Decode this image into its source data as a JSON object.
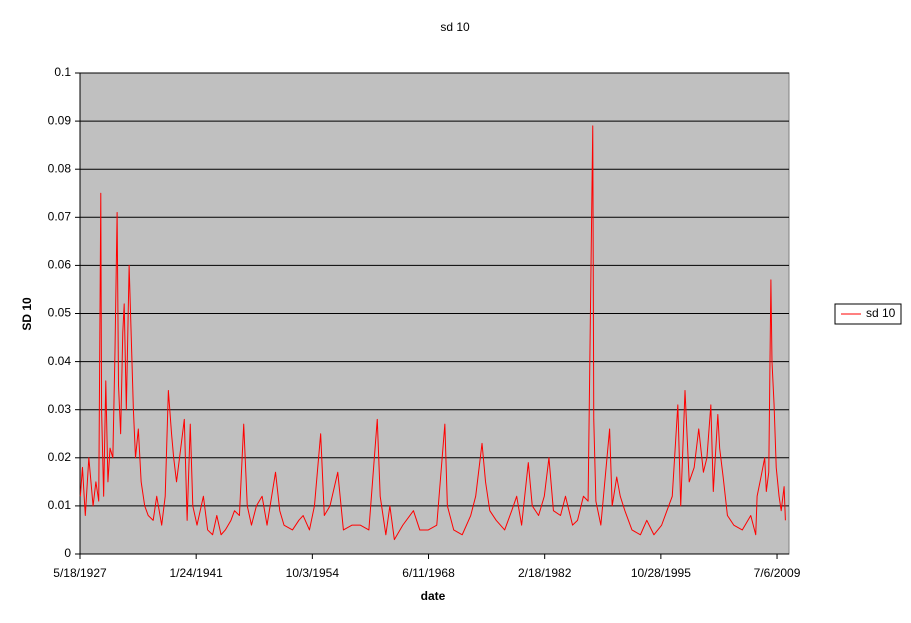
{
  "chart_data": {
    "type": "line",
    "title": "sd 10",
    "x_label": "date",
    "y_label": "SD 10",
    "x": [
      "1927-06-01",
      "1927-09-01",
      "1928-01-01",
      "1928-06-01",
      "1928-12-01",
      "1929-04-01",
      "1929-08-01",
      "1929-10-29",
      "1929-12-01",
      "1930-03-01",
      "1930-06-01",
      "1930-09-01",
      "1930-12-01",
      "1931-04-01",
      "1931-07-01",
      "1931-10-01",
      "1931-12-01",
      "1932-03-01",
      "1932-06-01",
      "1932-08-01",
      "1932-11-01",
      "1933-03-01",
      "1933-06-01",
      "1933-09-01",
      "1933-12-01",
      "1934-04-01",
      "1934-08-01",
      "1935-01-01",
      "1935-06-01",
      "1936-01-01",
      "1936-06-01",
      "1937-01-01",
      "1937-06-01",
      "1937-10-15",
      "1938-03-01",
      "1938-06-01",
      "1938-10-01",
      "1939-04-01",
      "1939-09-01",
      "1940-01-01",
      "1940-05-15",
      "1940-09-01",
      "1941-03-01",
      "1941-12-01",
      "1942-06-01",
      "1943-01-01",
      "1943-07-01",
      "1944-01-01",
      "1944-07-01",
      "1945-03-01",
      "1945-08-01",
      "1946-03-01",
      "1946-09-01",
      "1947-02-01",
      "1947-08-01",
      "1948-03-01",
      "1948-11-01",
      "1949-06-01",
      "1950-06-01",
      "1950-12-01",
      "1951-06-01",
      "1952-06-01",
      "1953-03-01",
      "1953-09-01",
      "1954-06-01",
      "1955-01-01",
      "1955-09-26",
      "1956-03-01",
      "1956-11-01",
      "1957-10-01",
      "1958-06-01",
      "1959-06-01",
      "1960-06-01",
      "1961-06-01",
      "1962-05-28",
      "1962-10-01",
      "1963-06-01",
      "1963-11-22",
      "1964-06-01",
      "1965-06-01",
      "1966-09-01",
      "1967-06-01",
      "1968-06-01",
      "1969-06-01",
      "1970-05-15",
      "1970-09-01",
      "1971-06-01",
      "1972-06-01",
      "1973-06-01",
      "1974-01-01",
      "1974-10-01",
      "1975-03-01",
      "1975-09-01",
      "1976-06-01",
      "1977-06-01",
      "1978-04-01",
      "1978-11-01",
      "1979-06-01",
      "1980-03-15",
      "1980-09-01",
      "1981-06-01",
      "1982-02-01",
      "1982-08-20",
      "1983-03-01",
      "1984-01-01",
      "1984-08-01",
      "1985-06-01",
      "1986-01-01",
      "1986-09-12",
      "1987-04-01",
      "1987-10-19",
      "1987-12-01",
      "1988-03-01",
      "1988-10-01",
      "1989-10-13",
      "1990-02-01",
      "1990-08-15",
      "1991-01-15",
      "1991-08-01",
      "1992-06-01",
      "1993-06-01",
      "1994-03-01",
      "1995-01-01",
      "1995-12-01",
      "1996-07-15",
      "1997-03-01",
      "1997-10-27",
      "1998-03-01",
      "1998-09-01",
      "1999-03-01",
      "1999-10-01",
      "2000-04-14",
      "2000-11-01",
      "2001-04-01",
      "2001-09-17",
      "2002-01-01",
      "2002-07-15",
      "2002-10-01",
      "2003-03-01",
      "2003-09-01",
      "2004-06-01",
      "2005-06-01",
      "2006-06-01",
      "2007-01-01",
      "2007-03-01",
      "2007-08-15",
      "2008-01-22",
      "2008-04-01",
      "2008-07-15",
      "2008-10-15",
      "2008-12-01",
      "2009-03-01",
      "2009-06-01",
      "2009-10-01",
      "2010-01-01",
      "2010-05-06",
      "2010-07-01"
    ],
    "series": [
      {
        "name": "sd 10",
        "color": "#ff0000",
        "values": [
          0.012,
          0.018,
          0.008,
          0.02,
          0.01,
          0.015,
          0.011,
          0.075,
          0.03,
          0.012,
          0.036,
          0.015,
          0.022,
          0.02,
          0.042,
          0.071,
          0.035,
          0.025,
          0.046,
          0.052,
          0.03,
          0.06,
          0.045,
          0.03,
          0.02,
          0.026,
          0.015,
          0.01,
          0.008,
          0.007,
          0.012,
          0.006,
          0.012,
          0.034,
          0.025,
          0.02,
          0.015,
          0.022,
          0.028,
          0.007,
          0.027,
          0.01,
          0.006,
          0.012,
          0.005,
          0.004,
          0.008,
          0.004,
          0.005,
          0.007,
          0.009,
          0.008,
          0.027,
          0.01,
          0.006,
          0.01,
          0.012,
          0.006,
          0.017,
          0.009,
          0.006,
          0.005,
          0.007,
          0.008,
          0.005,
          0.01,
          0.025,
          0.008,
          0.01,
          0.017,
          0.005,
          0.006,
          0.006,
          0.005,
          0.028,
          0.012,
          0.004,
          0.01,
          0.003,
          0.006,
          0.009,
          0.005,
          0.005,
          0.006,
          0.027,
          0.01,
          0.005,
          0.004,
          0.008,
          0.012,
          0.023,
          0.015,
          0.009,
          0.007,
          0.005,
          0.009,
          0.012,
          0.006,
          0.019,
          0.01,
          0.008,
          0.012,
          0.02,
          0.009,
          0.008,
          0.012,
          0.006,
          0.007,
          0.012,
          0.011,
          0.089,
          0.028,
          0.011,
          0.006,
          0.026,
          0.01,
          0.016,
          0.012,
          0.009,
          0.005,
          0.004,
          0.007,
          0.004,
          0.006,
          0.009,
          0.012,
          0.031,
          0.01,
          0.034,
          0.015,
          0.018,
          0.026,
          0.017,
          0.02,
          0.031,
          0.013,
          0.029,
          0.022,
          0.016,
          0.008,
          0.006,
          0.005,
          0.008,
          0.004,
          0.012,
          0.016,
          0.02,
          0.013,
          0.017,
          0.057,
          0.04,
          0.031,
          0.018,
          0.012,
          0.009,
          0.014,
          0.007
        ]
      }
    ],
    "xlim": [
      "1927-05-18",
      "2010-12-03"
    ],
    "xticks": [
      {
        "value": "1927-05-18",
        "label": "5/18/1927"
      },
      {
        "value": "1941-01-24",
        "label": "1/24/1941"
      },
      {
        "value": "1954-10-03",
        "label": "10/3/1954"
      },
      {
        "value": "1968-06-11",
        "label": "6/11/1968"
      },
      {
        "value": "1982-02-18",
        "label": "2/18/1982"
      },
      {
        "value": "1995-10-28",
        "label": "10/28/1995"
      },
      {
        "value": "2009-07-06",
        "label": "7/6/2009"
      }
    ],
    "ylim": [
      0,
      0.1
    ],
    "yticks": [
      0,
      0.01,
      0.02,
      0.03,
      0.04,
      0.05,
      0.06,
      0.07,
      0.08,
      0.09,
      0.1
    ],
    "grid": true,
    "legend": "right"
  }
}
